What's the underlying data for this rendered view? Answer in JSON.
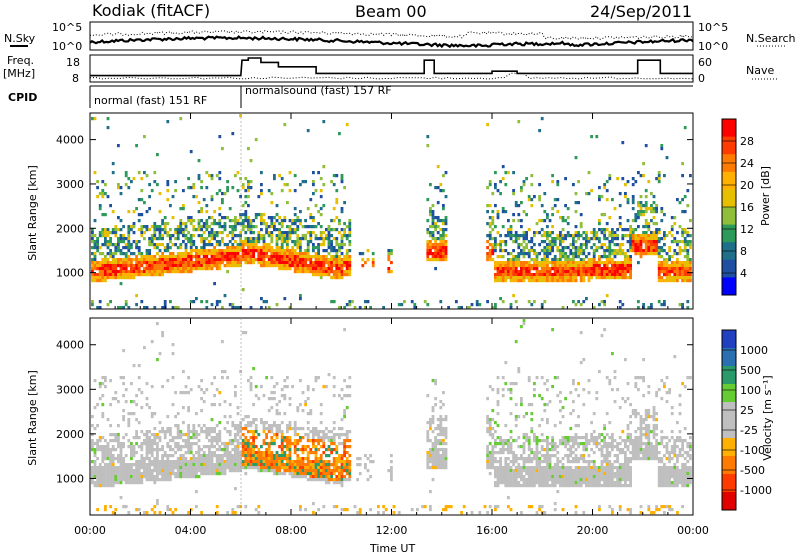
{
  "header": {
    "station": "Kodiak (fitACF)",
    "beam": "Beam 00",
    "date": "24/Sep/2011"
  },
  "top_strip": {
    "left_label": "N.Sky",
    "right_label": "N.Search",
    "left_ticks": [
      "10^5",
      "10^0"
    ],
    "right_ticks": [
      "10^5",
      "10^0"
    ]
  },
  "freq_strip": {
    "left_label_1": "Freq.",
    "left_label_2": "[MHz]",
    "right_label": "Nave",
    "left_ticks": [
      "18",
      "8"
    ],
    "right_ticks": [
      "60",
      "0"
    ]
  },
  "cpid": {
    "label": "CPID",
    "modes": [
      {
        "text": "normal (fast) 151 RF",
        "start_hour": 0,
        "end_hour": 6
      },
      {
        "text": "normalsound (fast) 157 RF",
        "start_hour": 6,
        "end_hour": 24
      }
    ]
  },
  "time_axis": {
    "label": "Time UT",
    "ticks": [
      "00:00",
      "04:00",
      "08:00",
      "12:00",
      "16:00",
      "20:00",
      "00:00"
    ]
  },
  "chart_data": [
    {
      "type": "heatmap",
      "name": "power",
      "ylabel": "Slant Range [km]",
      "yticks": [
        1000,
        2000,
        3000,
        4000
      ],
      "ylim": [
        180,
        4600
      ],
      "xlim": [
        0,
        24
      ],
      "colorbar": {
        "label": "Power [dB]",
        "tick_labels": [
          "28",
          "24",
          "20",
          "16",
          "12",
          "8",
          "4"
        ],
        "colors": [
          "#ff0000",
          "#ff3b00",
          "#ff7a00",
          "#ffb000",
          "#e6c000",
          "#8fbf3a",
          "#2e9a5a",
          "#1f6f8b",
          "#1f4fa0",
          "#0000ff"
        ]
      }
    },
    {
      "type": "heatmap",
      "name": "velocity",
      "ylabel": "Slant Range [km]",
      "yticks": [
        1000,
        2000,
        3000,
        4000
      ],
      "ylim": [
        180,
        4600
      ],
      "xlim": [
        0,
        24
      ],
      "colorbar": {
        "label": "Velocity [m s⁻¹]",
        "tick_labels": [
          "1000",
          "500",
          "100",
          "25",
          "-25",
          "-100",
          "-500",
          "-1000"
        ],
        "colors": [
          "#2040c0",
          "#2a6fb0",
          "#2a9a6a",
          "#66cc33",
          "#bfbfbf",
          "#bfbfbf",
          "#ffb000",
          "#ff7a00",
          "#ff3b00",
          "#e00000"
        ]
      }
    }
  ]
}
